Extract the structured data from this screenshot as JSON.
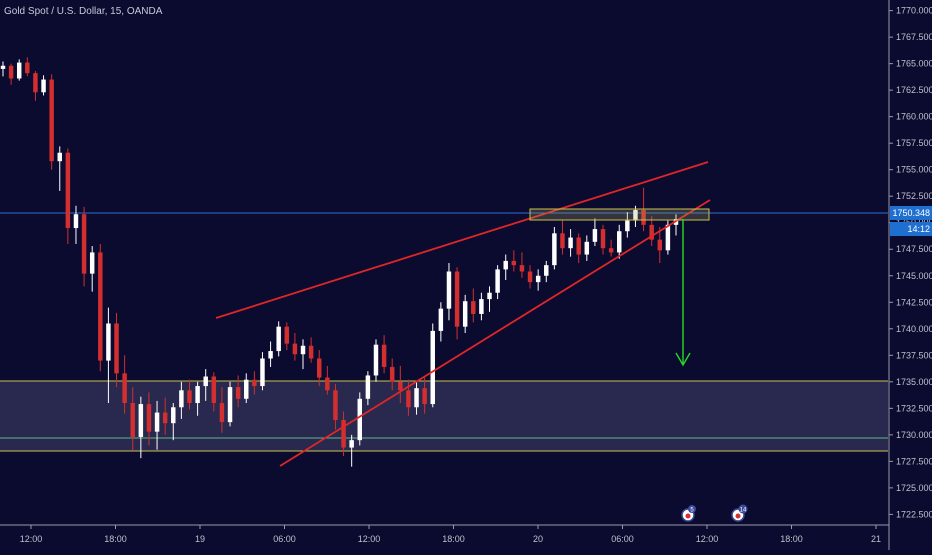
{
  "header": {
    "symbol_title": "Gold Spot / U.S. Dollar, 15, OANDA"
  },
  "colors": {
    "background": "#0b0b30",
    "bull": "#ffffff",
    "bear": "#d32f2f",
    "trendline": "#e02626",
    "zone_fill": "#29284f",
    "zone_border": "#c9c24a",
    "zone_inner_line": "#5fb98a",
    "price_line": "#2f6fd6",
    "arrow": "#22dd22",
    "axis_text": "#c0c0cc",
    "axis_line": "#9a9aa8",
    "price_label_bg": "#1f6fd1"
  },
  "price_axis": {
    "ticks": [
      "1770.000",
      "1767.500",
      "1765.000",
      "1762.500",
      "1760.000",
      "1757.500",
      "1755.000",
      "1752.500",
      "1750.000",
      "1747.500",
      "1745.000",
      "1742.500",
      "1740.000",
      "1737.500",
      "1735.000",
      "1732.500",
      "1730.000",
      "1727.500",
      "1725.000",
      "1722.500"
    ],
    "current_price_label": "1750.348",
    "countdown_label": "14:12"
  },
  "time_axis": {
    "ticks": [
      "12:00",
      "18:00",
      "19",
      "06:00",
      "12:00",
      "18:00",
      "20",
      "06:00",
      "12:00",
      "18:00",
      "21"
    ]
  },
  "markers": [
    {
      "icon": "event-flag-icon",
      "label": "5"
    },
    {
      "icon": "event-flag-icon",
      "label": "14"
    }
  ],
  "chart_data": {
    "type": "candlestick",
    "title": "Gold Spot / U.S. Dollar, 15, OANDA",
    "xlabel": "",
    "ylabel": "",
    "ylim": [
      1721.5,
      1771
    ],
    "grid": false,
    "current_price": 1750.348,
    "x_ticks": [
      "12:00",
      "18:00",
      "19",
      "06:00",
      "12:00",
      "18:00",
      "20",
      "06:00",
      "12:00",
      "18:00",
      "21"
    ],
    "support_zone": {
      "low": 1727.8,
      "high": 1734.8,
      "inner_line": 1729.1
    },
    "resistance_box": {
      "low": 1749.7,
      "high": 1750.8
    },
    "rising_wedge": {
      "upper_line": [
        [
          1740.6,
          1755.2
        ]
      ],
      "lower_line": [
        [
          1726.5,
          1751.5
        ]
      ]
    },
    "projected_target_arrow": {
      "from": 1749.8,
      "to": 1736.5
    },
    "candles_summary": {
      "day_start_high": 1765.6,
      "swing_low": 1727.8,
      "swing_high_1": 1740.7,
      "swing_low_2": 1727.0,
      "recent_high": 1753.3,
      "last_close": 1750.35
    },
    "candles": [
      [
        1764.5,
        1765.2,
        1763.8,
        1764.8
      ],
      [
        1764.8,
        1765.0,
        1763.0,
        1763.6
      ],
      [
        1763.6,
        1765.4,
        1763.4,
        1765.1
      ],
      [
        1765.1,
        1765.6,
        1763.8,
        1764.1
      ],
      [
        1764.1,
        1764.3,
        1761.5,
        1762.3
      ],
      [
        1762.3,
        1763.9,
        1762.0,
        1763.5
      ],
      [
        1763.5,
        1764.0,
        1755.0,
        1755.8
      ],
      [
        1755.8,
        1757.2,
        1753.0,
        1756.6
      ],
      [
        1756.6,
        1757.0,
        1748.0,
        1749.5
      ],
      [
        1749.5,
        1751.6,
        1748.0,
        1750.8
      ],
      [
        1750.8,
        1751.5,
        1744.0,
        1745.2
      ],
      [
        1745.2,
        1747.8,
        1743.5,
        1747.2
      ],
      [
        1747.2,
        1748.0,
        1736.0,
        1737.0
      ],
      [
        1737.0,
        1742.0,
        1733.0,
        1740.5
      ],
      [
        1740.5,
        1741.5,
        1734.5,
        1735.8
      ],
      [
        1735.8,
        1737.5,
        1732.0,
        1733.0
      ],
      [
        1733.0,
        1734.5,
        1728.5,
        1729.8
      ],
      [
        1729.8,
        1733.6,
        1727.8,
        1732.9
      ],
      [
        1732.9,
        1734.0,
        1729.0,
        1730.3
      ],
      [
        1730.3,
        1733.2,
        1728.6,
        1732.1
      ],
      [
        1732.1,
        1733.5,
        1730.0,
        1731.1
      ],
      [
        1731.1,
        1733.0,
        1729.5,
        1732.6
      ],
      [
        1732.6,
        1735.0,
        1731.5,
        1734.2
      ],
      [
        1734.2,
        1735.2,
        1732.4,
        1733.0
      ],
      [
        1733.0,
        1735.0,
        1731.8,
        1734.6
      ],
      [
        1734.6,
        1736.2,
        1733.2,
        1735.5
      ],
      [
        1735.5,
        1735.9,
        1732.2,
        1733.0
      ],
      [
        1733.0,
        1734.5,
        1730.2,
        1731.2
      ],
      [
        1731.2,
        1735.0,
        1730.8,
        1734.5
      ],
      [
        1734.5,
        1735.6,
        1732.6,
        1733.4
      ],
      [
        1733.4,
        1735.8,
        1733.0,
        1735.2
      ],
      [
        1735.2,
        1736.0,
        1733.8,
        1734.6
      ],
      [
        1734.6,
        1737.8,
        1734.2,
        1737.2
      ],
      [
        1737.2,
        1738.8,
        1736.4,
        1737.9
      ],
      [
        1737.9,
        1740.7,
        1737.4,
        1740.2
      ],
      [
        1740.2,
        1740.6,
        1738.0,
        1738.6
      ],
      [
        1738.6,
        1739.6,
        1737.0,
        1737.6
      ],
      [
        1737.6,
        1739.0,
        1736.2,
        1738.4
      ],
      [
        1738.4,
        1739.2,
        1736.8,
        1737.2
      ],
      [
        1737.2,
        1738.0,
        1734.6,
        1735.4
      ],
      [
        1735.4,
        1736.5,
        1733.8,
        1734.2
      ],
      [
        1734.2,
        1734.8,
        1730.5,
        1731.4
      ],
      [
        1731.4,
        1732.2,
        1728.0,
        1728.8
      ],
      [
        1728.8,
        1730.0,
        1727.0,
        1729.5
      ],
      [
        1729.5,
        1734.0,
        1729.0,
        1733.4
      ],
      [
        1733.4,
        1736.0,
        1732.8,
        1735.6
      ],
      [
        1735.6,
        1739.0,
        1735.0,
        1738.5
      ],
      [
        1738.5,
        1739.4,
        1735.8,
        1736.4
      ],
      [
        1736.4,
        1737.2,
        1734.2,
        1735.0
      ],
      [
        1735.0,
        1736.5,
        1733.0,
        1734.2
      ],
      [
        1734.2,
        1735.2,
        1731.8,
        1732.6
      ],
      [
        1732.6,
        1735.0,
        1731.9,
        1734.4
      ],
      [
        1734.4,
        1735.4,
        1732.0,
        1732.9
      ],
      [
        1732.9,
        1740.5,
        1732.6,
        1739.8
      ],
      [
        1739.8,
        1742.5,
        1738.8,
        1741.9
      ],
      [
        1741.9,
        1746.2,
        1740.8,
        1745.4
      ],
      [
        1745.4,
        1745.8,
        1739.0,
        1740.2
      ],
      [
        1740.2,
        1743.2,
        1739.6,
        1742.6
      ],
      [
        1742.6,
        1743.8,
        1740.6,
        1741.4
      ],
      [
        1741.4,
        1743.4,
        1740.8,
        1742.8
      ],
      [
        1742.8,
        1744.0,
        1741.6,
        1743.4
      ],
      [
        1743.4,
        1746.0,
        1742.8,
        1745.6
      ],
      [
        1745.6,
        1747.0,
        1744.6,
        1746.4
      ],
      [
        1746.4,
        1747.4,
        1745.4,
        1746.0
      ],
      [
        1746.0,
        1747.2,
        1744.8,
        1745.4
      ],
      [
        1745.4,
        1746.0,
        1743.8,
        1744.4
      ],
      [
        1744.4,
        1745.6,
        1743.6,
        1745.0
      ],
      [
        1745.0,
        1746.4,
        1744.4,
        1746.0
      ],
      [
        1746.0,
        1749.6,
        1745.6,
        1749.0
      ],
      [
        1749.0,
        1750.2,
        1747.0,
        1747.6
      ],
      [
        1747.6,
        1749.4,
        1746.8,
        1748.6
      ],
      [
        1748.6,
        1749.0,
        1746.2,
        1747.0
      ],
      [
        1747.0,
        1748.8,
        1746.4,
        1748.2
      ],
      [
        1748.2,
        1750.4,
        1747.8,
        1749.4
      ],
      [
        1749.4,
        1749.8,
        1747.0,
        1747.6
      ],
      [
        1747.6,
        1748.4,
        1746.8,
        1747.2
      ],
      [
        1747.2,
        1749.8,
        1746.6,
        1749.2
      ],
      [
        1749.2,
        1751.0,
        1748.6,
        1750.2
      ],
      [
        1750.2,
        1751.6,
        1749.6,
        1751.2
      ],
      [
        1751.2,
        1753.3,
        1749.2,
        1749.8
      ],
      [
        1749.8,
        1750.6,
        1747.8,
        1748.4
      ],
      [
        1748.4,
        1749.6,
        1746.2,
        1747.4
      ],
      [
        1747.4,
        1750.2,
        1747.0,
        1749.8
      ],
      [
        1749.8,
        1750.8,
        1748.8,
        1750.35
      ]
    ]
  }
}
